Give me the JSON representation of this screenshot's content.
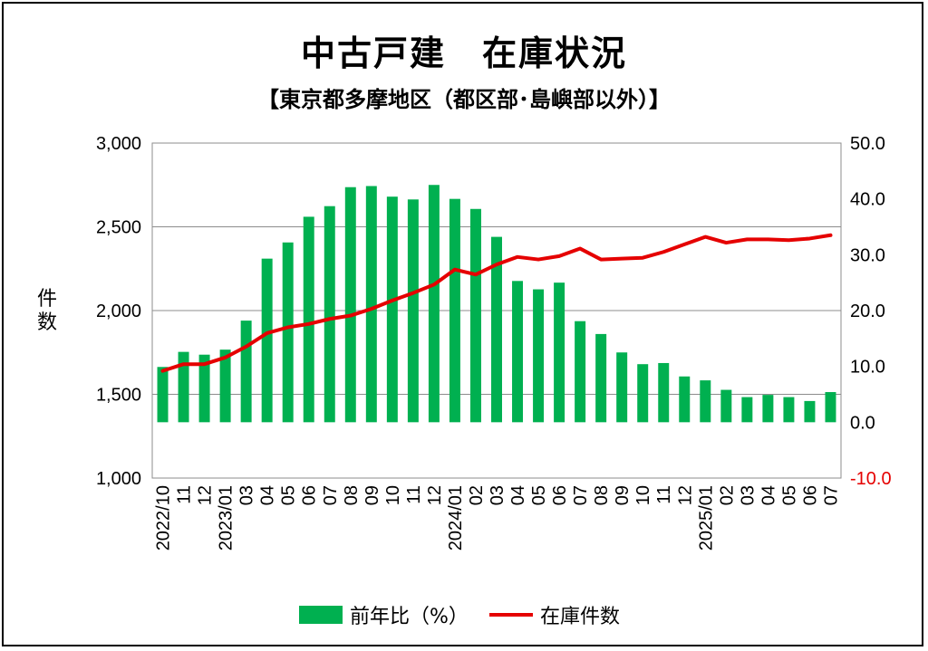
{
  "chart_data": {
    "type": "bar",
    "title": "中古戸建　在庫状況",
    "subtitle": "【東京都多摩地区（都区部･島嶼部以外）】",
    "ylabel_left": "件数",
    "categories": [
      "2022/10",
      "11",
      "12",
      "2023/01",
      "03",
      "04",
      "05",
      "06",
      "07",
      "08",
      "09",
      "10",
      "11",
      "12",
      "2024/01",
      "02",
      "03",
      "04",
      "05",
      "06",
      "07",
      "08",
      "09",
      "10",
      "11",
      "12",
      "2025/01",
      "02",
      "03",
      "04",
      "05",
      "06",
      "07"
    ],
    "y_left": {
      "min": 1000,
      "max": 3000,
      "ticks": [
        "1,000",
        "1,500",
        "2,000",
        "2,500",
        "3,000"
      ]
    },
    "y_right": {
      "min": -10,
      "max": 50,
      "ticks": [
        "-10.0",
        "0.0",
        "10.0",
        "20.0",
        "30.0",
        "40.0",
        "50.0"
      ]
    },
    "grid": true,
    "legend_position": "bottom",
    "series": [
      {
        "name": "前年比（%）",
        "type": "bar",
        "axis": "right",
        "color": "#00B050",
        "values": [
          9.9,
          12.6,
          12.1,
          13.0,
          18.2,
          29.3,
          32.2,
          36.8,
          38.7,
          42.1,
          42.3,
          40.4,
          39.9,
          42.5,
          40.0,
          38.2,
          33.2,
          25.3,
          23.8,
          25.0,
          18.1,
          15.8,
          12.5,
          10.4,
          10.6,
          8.2,
          7.5,
          5.8,
          4.5,
          4.9,
          4.5,
          3.8,
          5.4
        ]
      },
      {
        "name": "在庫件数",
        "type": "line",
        "axis": "left",
        "color": "#E50000",
        "values": [
          1640,
          1680,
          1680,
          1720,
          1785,
          1865,
          1900,
          1920,
          1950,
          1970,
          2010,
          2060,
          2105,
          2155,
          2245,
          2215,
          2275,
          2320,
          2305,
          2325,
          2370,
          2305,
          2310,
          2315,
          2350,
          2395,
          2440,
          2405,
          2425,
          2425,
          2420,
          2430,
          2450
        ]
      }
    ]
  }
}
